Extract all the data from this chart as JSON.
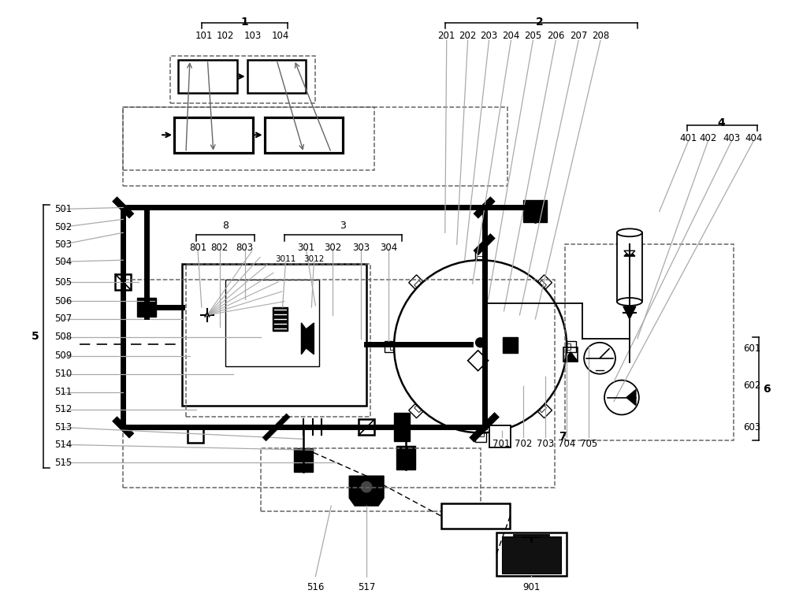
{
  "bg_color": "#ffffff",
  "black": "#000000",
  "gray": "#aaaaaa",
  "dgray": "#666666"
}
